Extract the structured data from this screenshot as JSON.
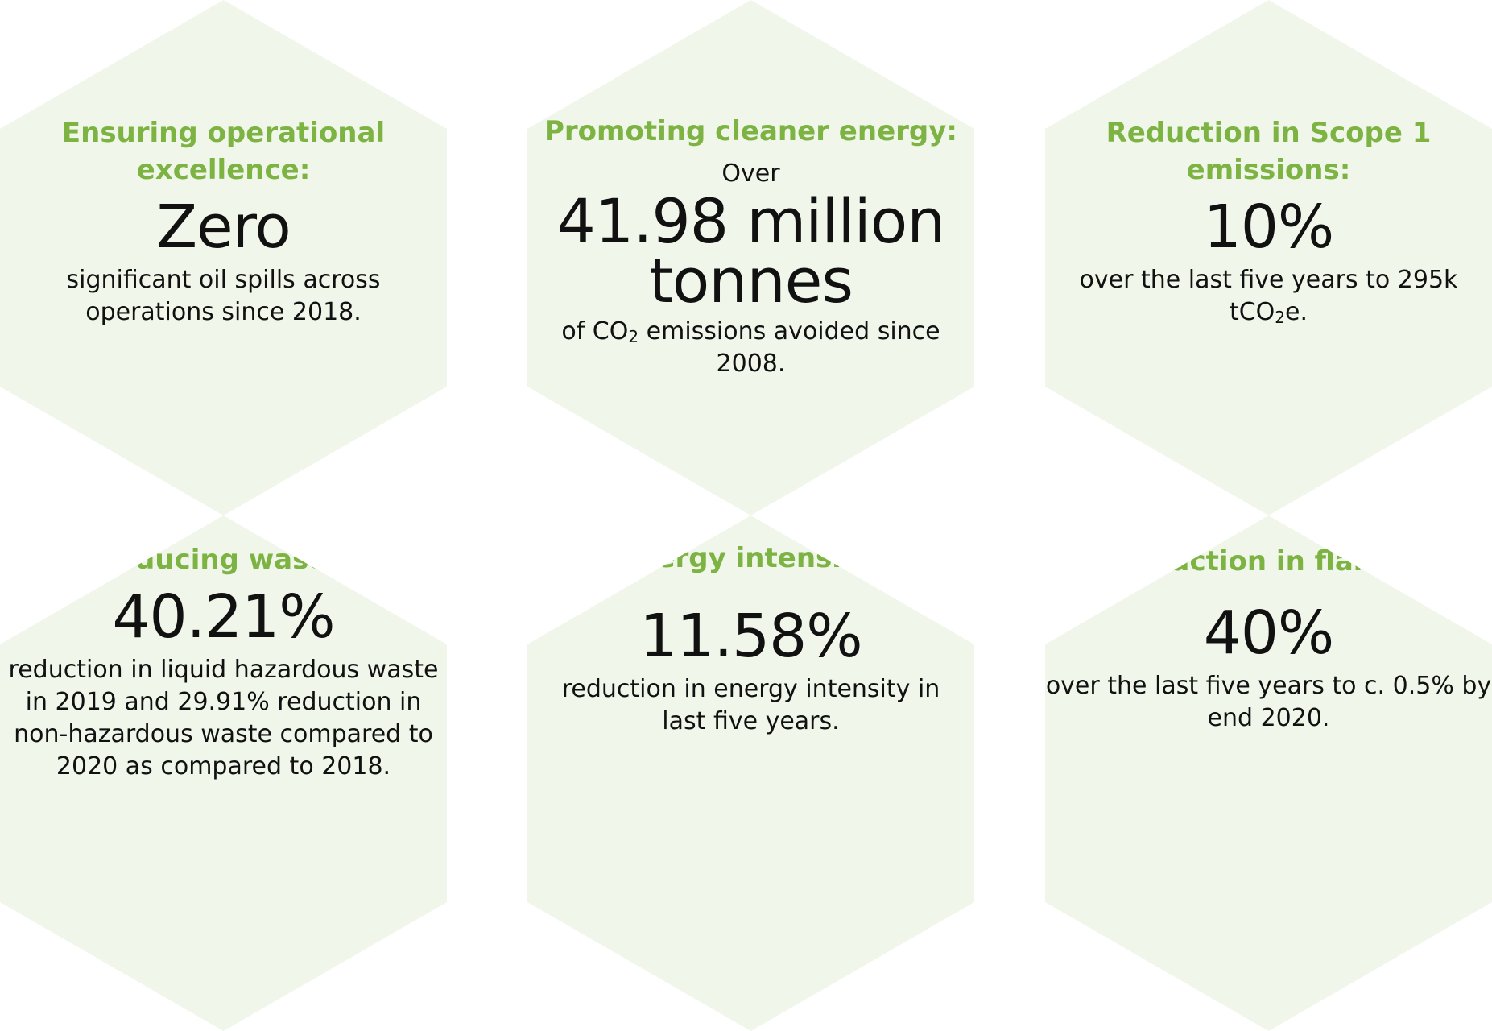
{
  "cards": [
    {
      "title": "Ensuring operational excellence:",
      "value": "Zero",
      "desc": "significant oil spills across operations since 2018."
    },
    {
      "title": "Promoting cleaner energy:",
      "pre": "Over",
      "value": "41.98 million tonnes",
      "desc_prefix": "of CO",
      "desc_sub": "2",
      "desc_suffix": "emissions avoided since 2008."
    },
    {
      "title": "Reduction in Scope 1 emissions:",
      "value": "10%",
      "desc_prefix": "over the last five years to 295k tCO",
      "desc_sub": "2",
      "desc_suffix": "e."
    },
    {
      "title": "Reducing waste:",
      "value": "40.21%",
      "desc": "reduction in liquid hazardous waste in 2019 and 29.91% reduction in non-hazardous waste compared to 2020 as compared to 2018."
    },
    {
      "title": "Energy intensity:",
      "value": "11.58%",
      "desc": "reduction in energy intensity in last five years."
    },
    {
      "title": "Reduction in flaring:",
      "value": "40%",
      "desc": "over the last five years to c. 0.5% by end 2020."
    }
  ],
  "colors": {
    "hex_fill": "#f0f6ea",
    "title_green": "#7cb342",
    "text": "#111111"
  }
}
